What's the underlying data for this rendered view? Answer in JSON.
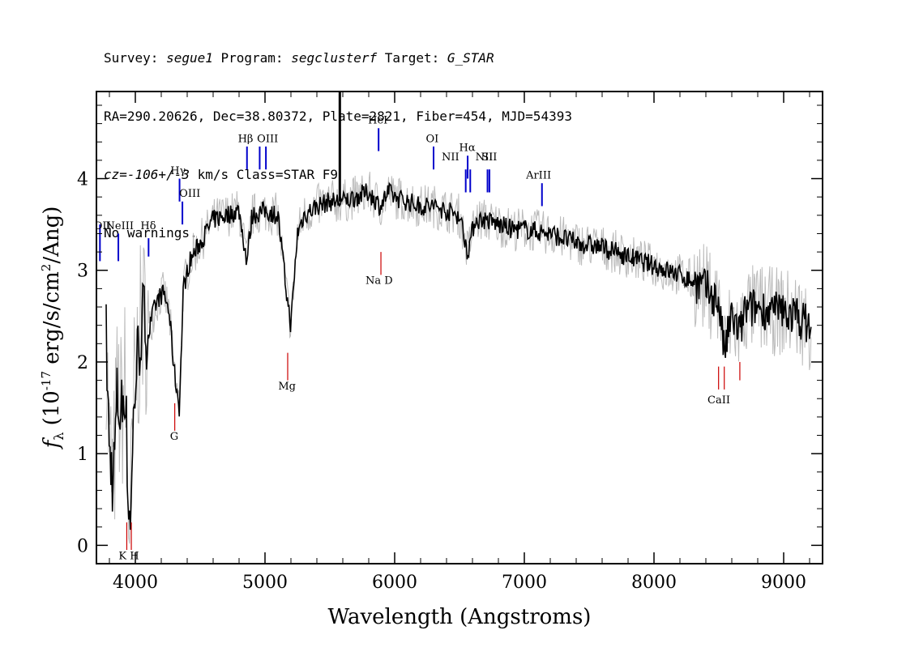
{
  "header": {
    "line1": {
      "survey_label": "Survey: ",
      "survey": "segue1",
      "program_label": " Program: ",
      "program": "segclusterf",
      "target_label": " Target: ",
      "target": "G_STAR"
    },
    "line2": "RA=290.20626, Dec=38.80372, Plate=2821, Fiber=454, MJD=54393",
    "line3": {
      "cz": "cz=-106+/-3",
      "rest": " km/s Class=STAR F9"
    },
    "line4": "No warnings."
  },
  "colors": {
    "flux": "#000000",
    "error": "#bbbbbb",
    "emission": "#0000cc",
    "absorption": "#cc0000"
  },
  "chart_data": {
    "type": "line",
    "xlabel": "Wavelength (Angstroms)",
    "ylabel": "f_λ (10^-17 erg/s/cm^2/Ang)",
    "xlim": [
      3700,
      9300
    ],
    "ylim": [
      -0.2,
      4.95
    ],
    "xticks": [
      4000,
      5000,
      6000,
      7000,
      8000,
      9000
    ],
    "yticks": [
      0,
      1,
      2,
      3,
      4
    ],
    "series": [
      {
        "points": [
          [
            3770,
            2.5
          ],
          [
            3800,
            1.0
          ],
          [
            3830,
            0.7
          ],
          [
            3860,
            1.6
          ],
          [
            3890,
            1.4
          ],
          [
            3920,
            1.8
          ],
          [
            3950,
            0.3
          ],
          [
            3970,
            0.5
          ],
          [
            3990,
            1.6
          ],
          [
            4020,
            2.1
          ],
          [
            4060,
            2.5
          ],
          [
            4100,
            2.3
          ],
          [
            4140,
            2.55
          ],
          [
            4180,
            2.7
          ],
          [
            4220,
            2.75
          ],
          [
            4260,
            2.55
          ],
          [
            4300,
            1.9
          ],
          [
            4340,
            1.5
          ],
          [
            4370,
            2.8
          ],
          [
            4420,
            3.1
          ],
          [
            4500,
            3.3
          ],
          [
            4600,
            3.55
          ],
          [
            4700,
            3.6
          ],
          [
            4800,
            3.65
          ],
          [
            4860,
            3.1
          ],
          [
            4900,
            3.6
          ],
          [
            5000,
            3.65
          ],
          [
            5100,
            3.6
          ],
          [
            5170,
            2.7
          ],
          [
            5200,
            2.4
          ],
          [
            5250,
            3.4
          ],
          [
            5300,
            3.6
          ],
          [
            5400,
            3.7
          ],
          [
            5500,
            3.75
          ],
          [
            5600,
            3.75
          ],
          [
            5700,
            3.8
          ],
          [
            5800,
            3.85
          ],
          [
            5890,
            3.7
          ],
          [
            5950,
            3.85
          ],
          [
            6000,
            3.8
          ],
          [
            6100,
            3.75
          ],
          [
            6200,
            3.7
          ],
          [
            6300,
            3.7
          ],
          [
            6400,
            3.65
          ],
          [
            6500,
            3.6
          ],
          [
            6563,
            3.2
          ],
          [
            6620,
            3.55
          ],
          [
            6700,
            3.55
          ],
          [
            6800,
            3.5
          ],
          [
            6900,
            3.45
          ],
          [
            7000,
            3.45
          ],
          [
            7200,
            3.4
          ],
          [
            7400,
            3.3
          ],
          [
            7600,
            3.25
          ],
          [
            7800,
            3.15
          ],
          [
            8000,
            3.05
          ],
          [
            8200,
            2.95
          ],
          [
            8400,
            2.8
          ],
          [
            8500,
            2.65
          ],
          [
            8542,
            2.1
          ],
          [
            8600,
            2.5
          ],
          [
            8662,
            2.3
          ],
          [
            8700,
            2.55
          ],
          [
            8800,
            2.6
          ],
          [
            8900,
            2.55
          ],
          [
            9000,
            2.55
          ],
          [
            9100,
            2.5
          ],
          [
            9200,
            2.4
          ]
        ]
      }
    ],
    "emission_lines": [
      {
        "label": "OII",
        "wave": 3727,
        "y_top": 3.5,
        "y_bot": 3.1
      },
      {
        "label": "NeIII",
        "wave": 3869,
        "y_top": 3.4,
        "y_bot": 3.1
      },
      {
        "label": "Hδ",
        "wave": 4102,
        "y_top": 3.35,
        "y_bot": 3.15
      },
      {
        "label": "Hγ",
        "wave": 4341,
        "y_top": 4.0,
        "y_bot": 3.75
      },
      {
        "label": "OIII",
        "wave": 4363,
        "y_top": 3.75,
        "y_bot": 3.5
      },
      {
        "label": "Hβ",
        "wave": 4861,
        "y_top": 4.35,
        "y_bot": 4.1
      },
      {
        "label": "OIII",
        "wave": 4959,
        "y_top": 4.35,
        "y_bot": 4.1
      },
      {
        "label": "OIII",
        "wave": 5007,
        "y_top": 4.35,
        "y_bot": 4.1
      },
      {
        "label": "HeI",
        "wave": 5876,
        "y_top": 4.55,
        "y_bot": 4.3
      },
      {
        "label": "OI",
        "wave": 6300,
        "y_top": 4.35,
        "y_bot": 4.1
      },
      {
        "label": "NII",
        "wave": 6548,
        "y_top": 4.1,
        "y_bot": 3.85
      },
      {
        "label": "Hα",
        "wave": 6563,
        "y_top": 4.25,
        "y_bot": 4.0
      },
      {
        "label": "NII",
        "wave": 6583,
        "y_top": 4.1,
        "y_bot": 3.85
      },
      {
        "label": "SII",
        "wave": 6716,
        "y_top": 4.1,
        "y_bot": 3.85
      },
      {
        "label": "SII",
        "wave": 6731,
        "y_top": 4.1,
        "y_bot": 3.85
      },
      {
        "label": "ArIII",
        "wave": 7136,
        "y_top": 3.95,
        "y_bot": 3.7
      }
    ],
    "absorption_lines": [
      {
        "label": "K",
        "wave": 3934,
        "y_top": 0.25,
        "y_bot": -0.05
      },
      {
        "label": "H",
        "wave": 3969,
        "y_top": 0.25,
        "y_bot": -0.05
      },
      {
        "label": "G",
        "wave": 4304,
        "y_top": 1.55,
        "y_bot": 1.25
      },
      {
        "label": "Mg",
        "wave": 5175,
        "y_top": 2.1,
        "y_bot": 1.8
      },
      {
        "label": "Na D",
        "wave": 5894,
        "y_top": 3.2,
        "y_bot": 2.95
      },
      {
        "label": "CaII",
        "wave": 8498,
        "y_top": 1.95,
        "y_bot": 1.7
      },
      {
        "label": "CaII",
        "wave": 8542,
        "y_top": 1.95,
        "y_bot": 1.7
      },
      {
        "label": "CaII",
        "wave": 8662,
        "y_top": 2.0,
        "y_bot": 1.8
      }
    ],
    "line_labels": [
      {
        "text": "OII",
        "wave": 3745,
        "y": 3.45
      },
      {
        "text": "NeIII",
        "wave": 3880,
        "y": 3.45
      },
      {
        "text": "Hδ",
        "wave": 4100,
        "y": 3.45
      },
      {
        "text": "Hγ",
        "wave": 4330,
        "y": 4.05
      },
      {
        "text": "OIII",
        "wave": 4420,
        "y": 3.8
      },
      {
        "text": "Hβ",
        "wave": 4850,
        "y": 4.4
      },
      {
        "text": "OIII",
        "wave": 5020,
        "y": 4.4
      },
      {
        "text": "HeI",
        "wave": 5870,
        "y": 4.6
      },
      {
        "text": "OI",
        "wave": 6290,
        "y": 4.4
      },
      {
        "text": "NII",
        "wave": 6430,
        "y": 4.2
      },
      {
        "text": "Hα",
        "wave": 6560,
        "y": 4.3
      },
      {
        "text": "NII",
        "wave": 6690,
        "y": 4.2
      },
      {
        "text": "SII",
        "wave": 6730,
        "y": 4.2
      },
      {
        "text": "ArIII",
        "wave": 7110,
        "y": 4.0
      },
      {
        "text": "Na D",
        "wave": 5880,
        "y": 2.85
      },
      {
        "text": "Mg",
        "wave": 5170,
        "y": 1.7
      },
      {
        "text": "G",
        "wave": 4300,
        "y": 1.15
      },
      {
        "text": "K H",
        "wave": 3950,
        "y": -0.15
      },
      {
        "text": "CaII",
        "wave": 8500,
        "y": 1.55
      }
    ],
    "spikes": [
      {
        "wave": 5577,
        "y": 4.95
      }
    ]
  }
}
